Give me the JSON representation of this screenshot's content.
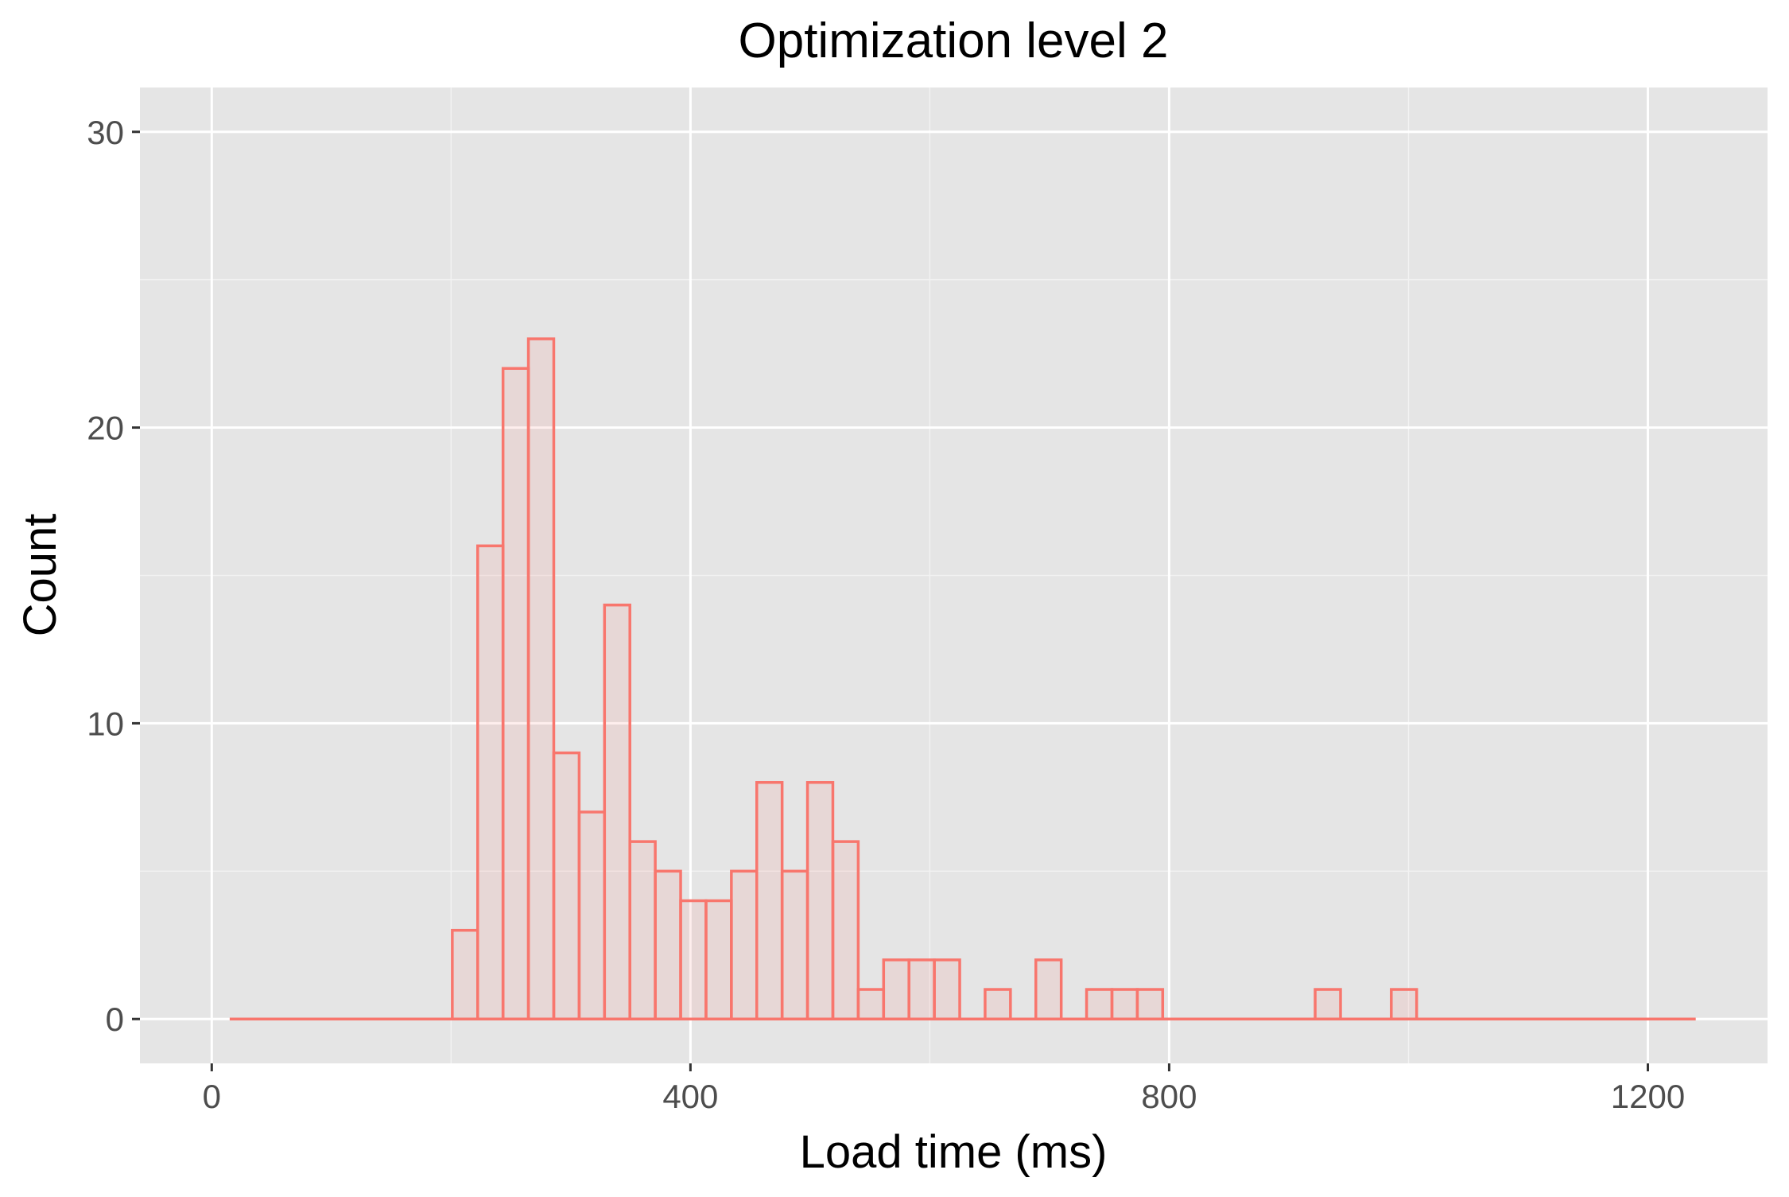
{
  "chart_data": {
    "type": "bar",
    "title": "Optimization level 2",
    "xlabel": "Load time (ms)",
    "ylabel": "Count",
    "x_ticks": [
      0,
      400,
      800,
      1200
    ],
    "y_ticks": [
      0,
      10,
      20,
      30
    ],
    "xlim": [
      -60,
      1300
    ],
    "ylim": [
      -1.5,
      31.5
    ],
    "bin_width": 21.2,
    "baseline_range": [
      15,
      1240
    ],
    "bins": [
      {
        "x0": 201,
        "count": 3
      },
      {
        "x0": 222.2,
        "count": 16
      },
      {
        "x0": 243.4,
        "count": 22
      },
      {
        "x0": 264.6,
        "count": 23
      },
      {
        "x0": 285.8,
        "count": 9
      },
      {
        "x0": 307,
        "count": 7
      },
      {
        "x0": 328.2,
        "count": 14
      },
      {
        "x0": 349.4,
        "count": 6
      },
      {
        "x0": 370.6,
        "count": 5
      },
      {
        "x0": 391.8,
        "count": 4
      },
      {
        "x0": 413,
        "count": 4
      },
      {
        "x0": 434.2,
        "count": 5
      },
      {
        "x0": 455.4,
        "count": 8
      },
      {
        "x0": 476.6,
        "count": 5
      },
      {
        "x0": 497.8,
        "count": 8
      },
      {
        "x0": 519,
        "count": 6
      },
      {
        "x0": 540.2,
        "count": 1
      },
      {
        "x0": 561.4,
        "count": 2
      },
      {
        "x0": 582.6,
        "count": 2
      },
      {
        "x0": 603.8,
        "count": 2
      },
      {
        "x0": 646.2,
        "count": 1
      },
      {
        "x0": 688.6,
        "count": 2
      },
      {
        "x0": 731,
        "count": 1
      },
      {
        "x0": 752.2,
        "count": 1
      },
      {
        "x0": 773.4,
        "count": 1
      },
      {
        "x0": 922,
        "count": 1
      },
      {
        "x0": 985.6,
        "count": 1
      }
    ],
    "colors": {
      "bar_outline": "#f8766d",
      "panel_background": "#e5e5e5",
      "grid": "#ffffff"
    },
    "grid": true,
    "legend": "none"
  }
}
